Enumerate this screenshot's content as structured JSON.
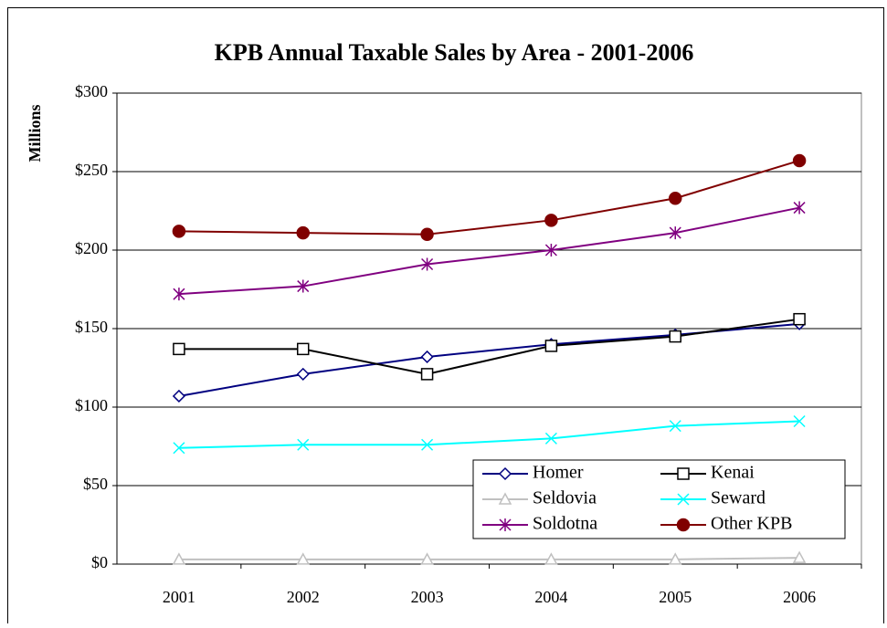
{
  "chart_data": {
    "type": "line",
    "title": "KPB Annual Taxable Sales by Area - 2001-2006",
    "y_label": "Millions",
    "categories": [
      "2001",
      "2002",
      "2003",
      "2004",
      "2005",
      "2006"
    ],
    "series": [
      {
        "name": "Homer",
        "color": "#000080",
        "marker": "diamond",
        "values": [
          107,
          121,
          132,
          140,
          146,
          153
        ]
      },
      {
        "name": "Kenai",
        "color": "#000000",
        "marker": "square",
        "values": [
          137,
          137,
          121,
          139,
          145,
          156
        ]
      },
      {
        "name": "Seldovia",
        "color": "#c0c0c0",
        "marker": "triangle",
        "values": [
          3,
          3,
          3,
          3,
          3,
          4
        ]
      },
      {
        "name": "Seward",
        "color": "#00ffff",
        "marker": "x",
        "values": [
          74,
          76,
          76,
          80,
          88,
          91
        ]
      },
      {
        "name": "Soldotna",
        "color": "#800080",
        "marker": "asterisk",
        "values": [
          172,
          177,
          191,
          200,
          211,
          227
        ]
      },
      {
        "name": "Other KPB",
        "color": "#800000",
        "marker": "circle",
        "values": [
          212,
          211,
          210,
          219,
          233,
          257
        ]
      }
    ],
    "ylim": [
      0,
      300
    ],
    "yticks": [
      {
        "value": 0,
        "label": "$0"
      },
      {
        "value": 50,
        "label": "$50"
      },
      {
        "value": 100,
        "label": "$100"
      },
      {
        "value": 150,
        "label": "$150"
      },
      {
        "value": 200,
        "label": "$200"
      },
      {
        "value": 250,
        "label": "$250"
      },
      {
        "value": 300,
        "label": "$300"
      }
    ],
    "grid": true,
    "legend": "lower right"
  }
}
